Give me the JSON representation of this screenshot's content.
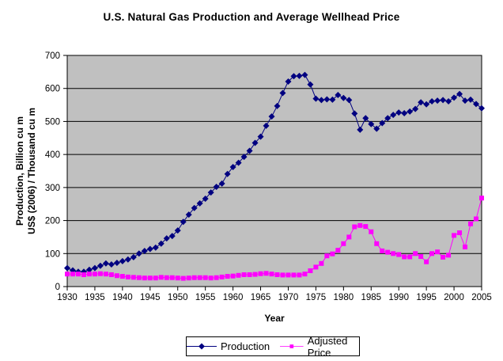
{
  "chart_data": {
    "type": "line",
    "title": "U.S. Natural Gas Production and Average Wellhead Price",
    "xlabel": "Year",
    "ylabel_line1": "Production, Billion cu m",
    "ylabel_line2": "US$ (2006) / Thousand cu m",
    "ylim": [
      0,
      700
    ],
    "yticks": [
      0,
      100,
      200,
      300,
      400,
      500,
      600,
      700
    ],
    "xticks": [
      1930,
      1935,
      1940,
      1945,
      1950,
      1955,
      1960,
      1965,
      1970,
      1975,
      1980,
      1985,
      1990,
      1995,
      2000,
      2005
    ],
    "grid": "horizontal-black",
    "legend_position": "bottom-center",
    "plot_bg_color": "#C0C0C0",
    "grid_color": "#000000",
    "axis_color": "#000000",
    "x": [
      1930,
      1931,
      1932,
      1933,
      1934,
      1935,
      1936,
      1937,
      1938,
      1939,
      1940,
      1941,
      1942,
      1943,
      1944,
      1945,
      1946,
      1947,
      1948,
      1949,
      1950,
      1951,
      1952,
      1953,
      1954,
      1955,
      1956,
      1957,
      1958,
      1959,
      1960,
      1961,
      1962,
      1963,
      1964,
      1965,
      1966,
      1967,
      1968,
      1969,
      1970,
      1971,
      1972,
      1973,
      1974,
      1975,
      1976,
      1977,
      1978,
      1979,
      1980,
      1981,
      1982,
      1983,
      1984,
      1985,
      1986,
      1987,
      1988,
      1989,
      1990,
      1991,
      1992,
      1993,
      1994,
      1995,
      1996,
      1997,
      1998,
      1999,
      2000,
      2001,
      2002,
      2003,
      2004,
      2005
    ],
    "series": [
      {
        "name": "Production",
        "color": "#000080",
        "marker": "diamond",
        "values": [
          56,
          49,
          45,
          45,
          51,
          56,
          63,
          70,
          67,
          72,
          77,
          82,
          89,
          100,
          108,
          114,
          118,
          130,
          146,
          153,
          170,
          196,
          218,
          238,
          252,
          266,
          285,
          302,
          312,
          341,
          362,
          375,
          393,
          411,
          435,
          454,
          487,
          515,
          547,
          586,
          621,
          637,
          638,
          641,
          612,
          569,
          565,
          567,
          566,
          580,
          571,
          565,
          524,
          475,
          510,
          492,
          478,
          495,
          510,
          520,
          527,
          525,
          530,
          538,
          558,
          552,
          561,
          563,
          565,
          561,
          572,
          583,
          563,
          566,
          553,
          540
        ]
      },
      {
        "name": "Adjusted Price",
        "color": "#FF00FF",
        "marker": "square",
        "values": [
          38,
          38,
          38,
          36,
          38,
          38,
          39,
          38,
          36,
          33,
          31,
          29,
          28,
          27,
          26,
          26,
          26,
          28,
          27,
          27,
          26,
          25,
          26,
          27,
          27,
          27,
          26,
          27,
          29,
          31,
          32,
          34,
          36,
          36,
          37,
          39,
          40,
          38,
          36,
          35,
          35,
          35,
          35,
          38,
          48,
          59,
          70,
          93,
          99,
          110,
          130,
          150,
          181,
          185,
          182,
          166,
          130,
          108,
          104,
          100,
          97,
          90,
          90,
          100,
          91,
          75,
          100,
          105,
          89,
          95,
          155,
          163,
          120,
          190,
          205,
          268
        ]
      }
    ]
  }
}
